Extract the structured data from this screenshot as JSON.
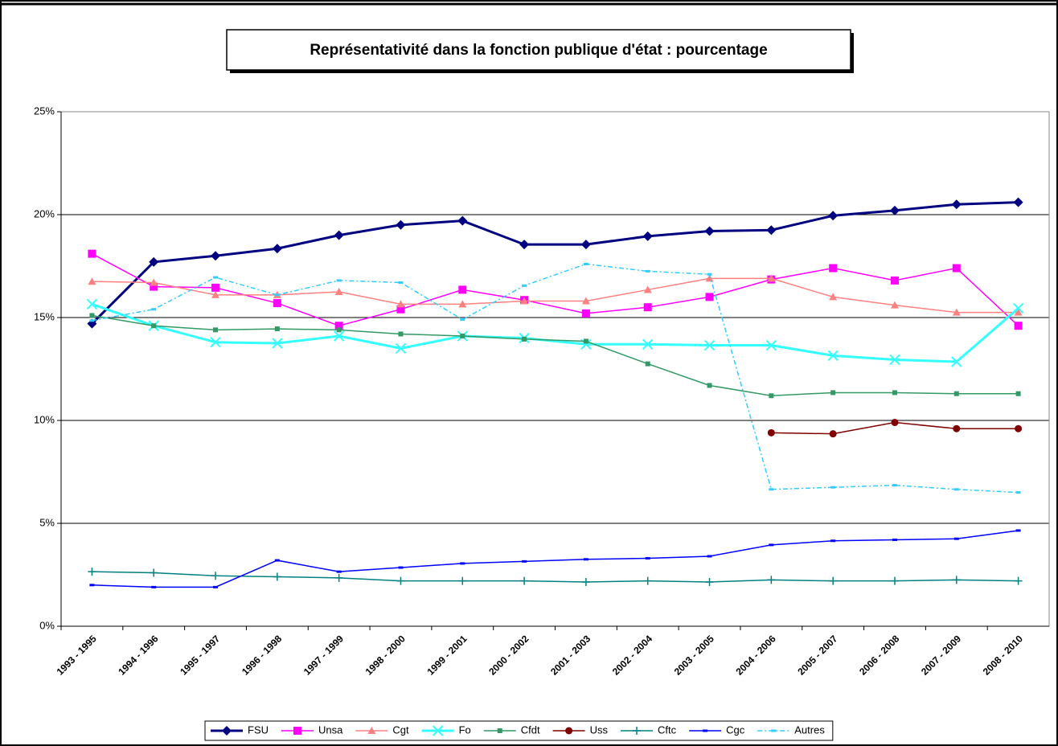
{
  "chart_data": {
    "type": "line",
    "title": "Représentativité dans la fonction publique d'état : pourcentage",
    "categories": [
      "1993 - 1995",
      "1994 - 1996",
      "1995 - 1997",
      "1996 - 1998",
      "1997 - 1999",
      "1998 - 2000",
      "1999 - 2001",
      "2000 - 2002",
      "2001 - 2003",
      "2002 - 2004",
      "2003 - 2005",
      "2004 - 2006",
      "2005 - 2007",
      "2006 - 2008",
      "2007 - 2009",
      "2008 - 2010"
    ],
    "ylim": [
      0,
      25
    ],
    "yticks": [
      {
        "value": 0,
        "label": "0%"
      },
      {
        "value": 5,
        "label": "5%"
      },
      {
        "value": 10,
        "label": "10%"
      },
      {
        "value": 15,
        "label": "15%"
      },
      {
        "value": 20,
        "label": "20%"
      },
      {
        "value": 25,
        "label": "25%"
      }
    ],
    "grid": true,
    "legend": "bottom",
    "series": [
      {
        "name": "FSU",
        "color": "#000080",
        "marker": "diamond",
        "width": 3,
        "values": [
          14.7,
          17.7,
          18.0,
          18.35,
          19.0,
          19.5,
          19.7,
          18.55,
          18.55,
          18.95,
          19.2,
          19.25,
          19.95,
          20.2,
          20.5,
          20.6
        ]
      },
      {
        "name": "Unsa",
        "color": "#ff00ff",
        "marker": "square",
        "width": 1.5,
        "values": [
          18.1,
          16.5,
          16.45,
          15.7,
          14.6,
          15.4,
          16.35,
          15.85,
          15.2,
          15.5,
          16.0,
          16.85,
          17.4,
          16.8,
          17.4,
          14.6
        ]
      },
      {
        "name": "Cgt",
        "color": "#ff8080",
        "marker": "triangle",
        "width": 1.5,
        "values": [
          16.75,
          16.7,
          16.1,
          16.1,
          16.25,
          15.65,
          15.65,
          15.8,
          15.8,
          16.35,
          16.9,
          16.9,
          16.0,
          15.6,
          15.25,
          15.25
        ]
      },
      {
        "name": "Fo",
        "color": "#33ffff",
        "marker": "x",
        "width": 3,
        "values": [
          15.65,
          14.6,
          13.8,
          13.75,
          14.1,
          13.5,
          14.1,
          14.0,
          13.7,
          13.7,
          13.65,
          13.65,
          13.15,
          12.95,
          12.85,
          15.45
        ]
      },
      {
        "name": "Cfdt",
        "color": "#339966",
        "marker": "smallsquare",
        "width": 1.5,
        "values": [
          15.1,
          14.6,
          14.4,
          14.45,
          14.4,
          14.2,
          14.1,
          13.95,
          13.85,
          12.75,
          11.7,
          11.2,
          11.35,
          11.35,
          11.3,
          11.3
        ]
      },
      {
        "name": "Uss",
        "color": "#800000",
        "marker": "circle",
        "width": 1.5,
        "values": [
          null,
          null,
          null,
          null,
          null,
          null,
          null,
          null,
          null,
          null,
          null,
          9.4,
          9.35,
          9.9,
          9.6,
          9.6
        ]
      },
      {
        "name": "Cftc",
        "color": "#008080",
        "marker": "plus",
        "width": 1.5,
        "values": [
          2.65,
          2.6,
          2.45,
          2.4,
          2.35,
          2.2,
          2.2,
          2.2,
          2.15,
          2.2,
          2.15,
          2.25,
          2.2,
          2.2,
          2.25,
          2.2
        ]
      },
      {
        "name": "Cgc",
        "color": "#0000ff",
        "marker": "dash",
        "width": 1.5,
        "values": [
          2.0,
          1.9,
          1.9,
          3.2,
          2.65,
          2.85,
          3.05,
          3.15,
          3.25,
          3.3,
          3.4,
          3.95,
          4.15,
          4.2,
          4.25,
          4.65
        ]
      },
      {
        "name": "Autres",
        "color": "#33ccff",
        "marker": "dash",
        "width": 1.5,
        "dash": "6 3 2 3",
        "values": [
          14.85,
          15.4,
          16.95,
          16.1,
          16.8,
          16.7,
          14.9,
          16.55,
          17.6,
          17.25,
          17.1,
          6.65,
          6.75,
          6.85,
          6.65,
          6.5
        ]
      }
    ]
  }
}
